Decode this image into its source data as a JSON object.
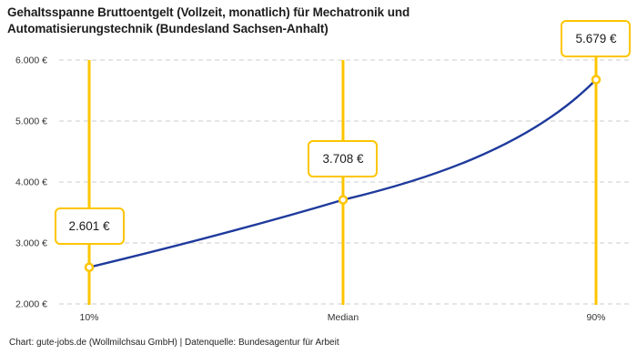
{
  "header": {
    "title": "Gehaltsspanne Bruttoentgelt (Vollzeit, monatlich) für Mechatronik und Automatisierungstechnik (Bundesland Sachsen-Anhalt)"
  },
  "footer": {
    "text": "Chart: gute-jobs.de (Wollmilchsau GmbH) | Datenquelle: Bundesagentur für Arbeit"
  },
  "chart_data": {
    "type": "line",
    "title": "Gehaltsspanne Bruttoentgelt (Vollzeit, monatlich) für Mechatronik und Automatisierungstechnik (Bundesland Sachsen-Anhalt)",
    "categories": [
      "10%",
      "Median",
      "90%"
    ],
    "values": [
      2601,
      3708,
      5679
    ],
    "value_labels": [
      "2.601 €",
      "3.708 €",
      "5.679 €"
    ],
    "xlabel": "",
    "ylabel": "",
    "ylim": [
      2000,
      6000
    ],
    "ytick_step": 1000,
    "ytick_labels": [
      "2.000 €",
      "3.000 €",
      "4.000 €",
      "5.000 €",
      "6.000 €"
    ],
    "grid": "horizontal-dashed",
    "legend": "none",
    "colors": {
      "line": "#1e3a9c",
      "accent": "#fdc500",
      "grid": "#cccccc",
      "tick_text": "#333333",
      "text": "#1d1d1d",
      "background": "#ffffff"
    }
  }
}
